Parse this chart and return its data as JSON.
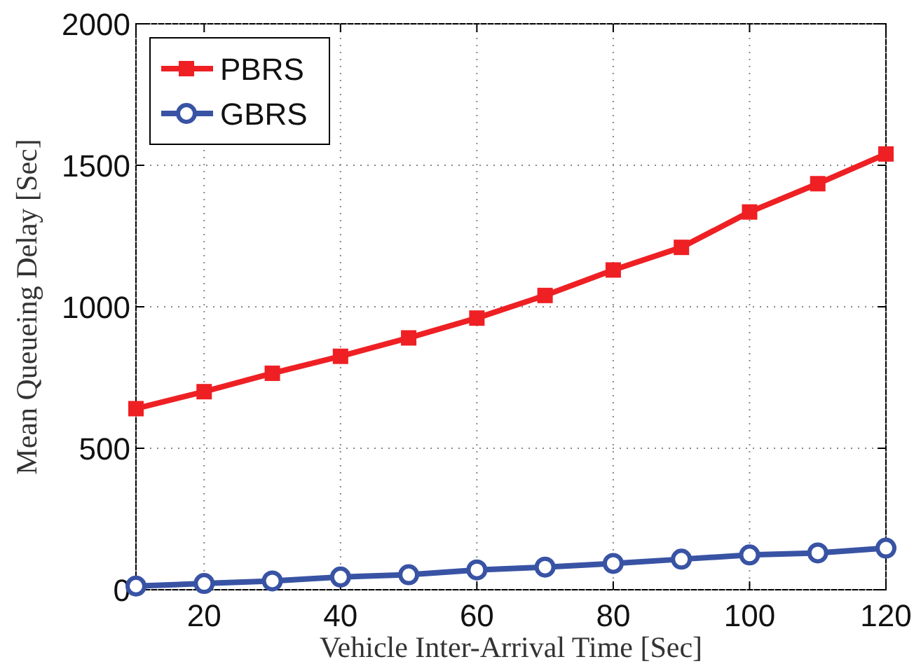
{
  "chart_data": {
    "type": "line",
    "xlabel": "Vehicle Inter-Arrival Time [Sec]",
    "ylabel": "Mean Queueing Delay [Sec]",
    "x": [
      10,
      20,
      30,
      40,
      50,
      60,
      70,
      80,
      90,
      100,
      110,
      120
    ],
    "series": [
      {
        "name": "PBRS",
        "color": "#ee2024",
        "marker": "square",
        "values": [
          640,
          700,
          765,
          825,
          890,
          960,
          1040,
          1130,
          1210,
          1335,
          1435,
          1540
        ]
      },
      {
        "name": "GBRS",
        "color": "#3953a4",
        "marker": "circle",
        "values": [
          13,
          22,
          31,
          45,
          53,
          70,
          80,
          93,
          108,
          123,
          130,
          147
        ]
      }
    ],
    "xlim": [
      10,
      120
    ],
    "xticks": [
      {
        "value": 10,
        "label": null
      },
      20,
      40,
      60,
      80,
      100,
      120
    ],
    "ylim": [
      0,
      2000
    ],
    "yticks": [
      0,
      500,
      1000,
      1500,
      2000
    ],
    "grid": true,
    "legend": "top left",
    "line_style": "solid"
  }
}
